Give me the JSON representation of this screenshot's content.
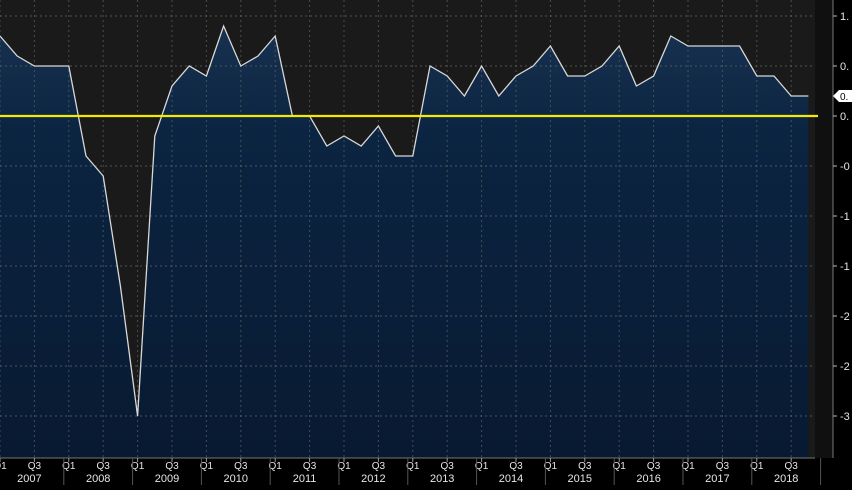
{
  "chart_data": {
    "type": "area",
    "title": "",
    "xlabel": "",
    "ylabel": "",
    "ylim": [
      -3.3,
      1.0
    ],
    "yticks": [
      1.0,
      0.5,
      0.0,
      -0.5,
      -1.0,
      -1.5,
      -2.0,
      -2.5,
      -3.0
    ],
    "ytick_labels": [
      "1.",
      "0.",
      "0.",
      "-0",
      "-1",
      "-1",
      "-2",
      "-2",
      "-3"
    ],
    "reference_line": 0.0,
    "last_value_label": "0.",
    "x_quarter_labels": [
      "Q1",
      "Q3",
      "Q1",
      "Q3",
      "Q1",
      "Q3",
      "Q1",
      "Q3",
      "Q1",
      "Q3",
      "Q1",
      "Q3",
      "Q1",
      "Q3",
      "Q1",
      "Q3",
      "Q1",
      "Q3",
      "Q1",
      "Q3",
      "Q1",
      "Q3",
      "Q1",
      "Q3"
    ],
    "x_year_labels": [
      "2007",
      "2008",
      "2009",
      "2010",
      "2011",
      "2012",
      "2013",
      "2014",
      "2015",
      "2016",
      "2017",
      "2018"
    ],
    "x_start": "2007 Q1",
    "series": [
      {
        "values": [
          0.8,
          0.6,
          0.5,
          0.5,
          0.5,
          -0.4,
          -0.6,
          -1.7,
          -3.0,
          -0.2,
          0.3,
          0.5,
          0.4,
          0.9,
          0.5,
          0.6,
          0.8,
          0.0,
          0.0,
          -0.3,
          -0.2,
          -0.3,
          -0.1,
          -0.4,
          -0.4,
          0.5,
          0.4,
          0.2,
          0.5,
          0.2,
          0.4,
          0.5,
          0.7,
          0.4,
          0.4,
          0.5,
          0.7,
          0.3,
          0.4,
          0.8,
          0.7,
          0.7,
          0.7,
          0.7,
          0.4,
          0.4,
          0.2,
          0.2
        ]
      }
    ],
    "colors": {
      "background_top": "#1a1a1a",
      "area_fill": "#173150",
      "area_fill_below": "#0b2441",
      "line": "#d8d8d8",
      "zero_line": "#f2ea00",
      "axis_text": "#e6e6e6",
      "grid": "#6b6b6b"
    }
  }
}
